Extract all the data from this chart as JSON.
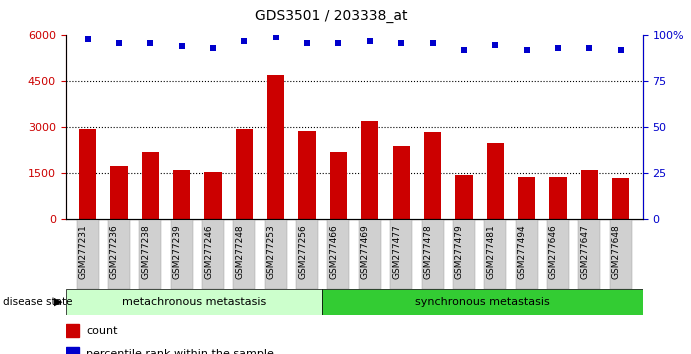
{
  "title": "GDS3501 / 203338_at",
  "samples": [
    "GSM277231",
    "GSM277236",
    "GSM277238",
    "GSM277239",
    "GSM277246",
    "GSM277248",
    "GSM277253",
    "GSM277256",
    "GSM277466",
    "GSM277469",
    "GSM277477",
    "GSM277478",
    "GSM277479",
    "GSM277481",
    "GSM277494",
    "GSM277646",
    "GSM277647",
    "GSM277648"
  ],
  "counts": [
    2950,
    1750,
    2200,
    1600,
    1550,
    2950,
    4700,
    2900,
    2200,
    3200,
    2400,
    2850,
    1450,
    2500,
    1400,
    1400,
    1600,
    1350
  ],
  "percentiles": [
    98,
    96,
    96,
    94,
    93,
    97,
    99,
    96,
    96,
    97,
    96,
    96,
    92,
    95,
    92,
    93,
    93,
    92
  ],
  "group1_label": "metachronous metastasis",
  "group2_label": "synchronous metastasis",
  "group1_count": 8,
  "group2_count": 10,
  "bar_color": "#cc0000",
  "dot_color": "#0000cc",
  "ylim_left": [
    0,
    6000
  ],
  "ylim_right": [
    0,
    100
  ],
  "yticks_left": [
    0,
    1500,
    3000,
    4500,
    6000
  ],
  "ytick_labels_left": [
    "0",
    "1500",
    "3000",
    "4500",
    "6000"
  ],
  "yticks_right": [
    0,
    25,
    50,
    75,
    100
  ],
  "ytick_labels_right": [
    "0",
    "25",
    "50",
    "75",
    "100%"
  ],
  "legend_count_label": "count",
  "legend_pct_label": "percentile rank within the sample",
  "group1_color": "#ccffcc",
  "group2_color": "#33cc33",
  "tick_bg_color": "#d0d0d0",
  "left_tick_color": "#cc0000",
  "right_tick_color": "#0000cc",
  "background_color": "#ffffff",
  "dotted_line_color": "#000000",
  "border_color": "#000000"
}
